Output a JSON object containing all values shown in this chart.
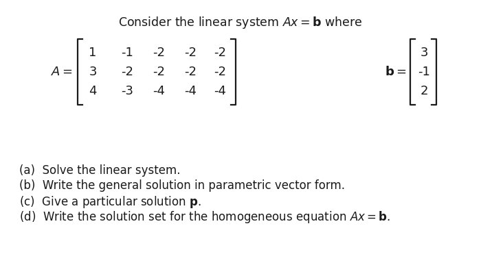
{
  "bg_color": "#ffffff",
  "text_color": "#1a1a1a",
  "fontsize_title": 12.5,
  "fontsize_matrix": 13,
  "fontsize_questions": 12,
  "matrix_A": [
    [
      1,
      -1,
      -2,
      -2,
      -2
    ],
    [
      3,
      -2,
      -2,
      -2,
      -2
    ],
    [
      4,
      -3,
      -4,
      -4,
      -4
    ]
  ],
  "matrix_b": [
    3,
    -1,
    2
  ],
  "questions_plain": [
    "(a)  Solve the linear system.",
    "(b)  Write the general solution in parametric vector form.",
    "(c)  Give a particular solution ",
    "(d)  Write the solution set for the homogeneous equation "
  ]
}
